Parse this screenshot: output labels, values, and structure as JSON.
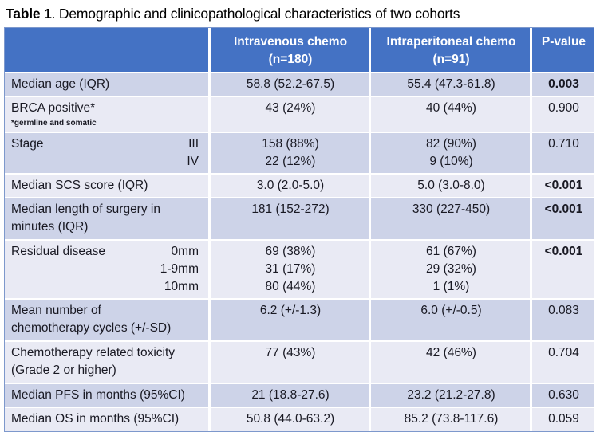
{
  "title": {
    "prefix": "Table 1",
    "rest": ". Demographic and clinicopathological characteristics of two cohorts"
  },
  "colors": {
    "header_bg": "#4472C4",
    "band_dark": "#CDD3E8",
    "band_light": "#E9EAF4",
    "header_text": "#FFFFFF",
    "body_text": "#191923"
  },
  "table": {
    "header": {
      "col1": "",
      "col2": "Intravenous chemo\n(n=180)",
      "col3": "Intraperitoneal chemo\n(n=91)",
      "col4": "P-value"
    },
    "rows": [
      {
        "label": "Median age (IQR)",
        "sublabels": "",
        "note": "",
        "iv": "58.8 (52.2-67.5)",
        "ip": "55.4 (47.3-61.8)",
        "p": "0.003",
        "p_bold": "true"
      },
      {
        "label": "BRCA positive*",
        "sublabels": "",
        "note": "*germline and somatic",
        "iv": "43 (24%)",
        "ip": "40 (44%)",
        "p": "0.900",
        "p_bold": "false"
      },
      {
        "label": "Stage",
        "sublabels": "III\nIV",
        "note": "",
        "iv": "158 (88%)\n22 (12%)",
        "ip": "82 (90%)\n9 (10%)",
        "p": "0.710",
        "p_bold": "false"
      },
      {
        "label": "Median SCS score (IQR)",
        "sublabels": "",
        "note": "",
        "iv": "3.0 (2.0-5.0)",
        "ip": "5.0 (3.0-8.0)",
        "p": "<0.001",
        "p_bold": "true"
      },
      {
        "label": "Median length of surgery in\nminutes (IQR)",
        "sublabels": "",
        "note": "",
        "iv": "181 (152-272)",
        "ip": "330 (227-450)",
        "p": "<0.001",
        "p_bold": "true"
      },
      {
        "label": "Residual disease",
        "sublabels": "0mm\n1-9mm\n10mm",
        "note": "",
        "iv": "69 (38%)\n31 (17%)\n80 (44%)",
        "ip": "61 (67%)\n29 (32%)\n1 (1%)",
        "p": "<0.001",
        "p_bold": "true"
      },
      {
        "label": "Mean number of\nchemotherapy cycles (+/-SD)",
        "sublabels": "",
        "note": "",
        "iv": "6.2 (+/-1.3)",
        "ip": "6.0 (+/-0.5)",
        "p": "0.083",
        "p_bold": "false"
      },
      {
        "label": "Chemotherapy related toxicity\n(Grade 2 or higher)",
        "sublabels": "",
        "note": "",
        "iv": "77 (43%)",
        "ip": "42 (46%)",
        "p": "0.704",
        "p_bold": "false"
      },
      {
        "label": "Median PFS in months (95%CI)",
        "sublabels": "",
        "note": "",
        "iv": "21 (18.8-27.6)",
        "ip": "23.2 (21.2-27.8)",
        "p": "0.630",
        "p_bold": "false"
      },
      {
        "label": "Median OS in months (95%CI)",
        "sublabels": "",
        "note": "",
        "iv": "50.8 (44.0-63.2)",
        "ip": "85.2 (73.8-117.6)",
        "p": "0.059",
        "p_bold": "false"
      }
    ]
  }
}
